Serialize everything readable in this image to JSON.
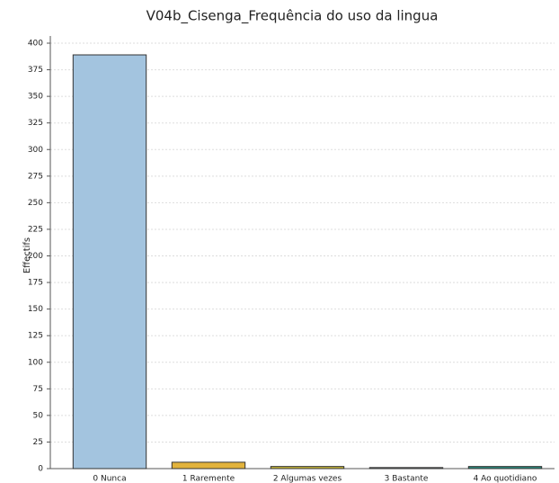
{
  "chart_data": {
    "type": "bar",
    "title": "V04b_Cisenga_Frequência do uso da lingua",
    "y_label": "Effectifs",
    "categories": [
      "0  Nunca",
      "1  Raremente",
      "2  Algumas vezes",
      "3  Bastante",
      "4  Ao quotidiano"
    ],
    "values": [
      389,
      6,
      2,
      1,
      2
    ],
    "colors": [
      "#a3c4df",
      "#e2b33c",
      "#c9b83a",
      "#8a8f95",
      "#2b8a7c"
    ],
    "ylim": [
      0,
      400
    ],
    "yticks": [
      0,
      25,
      50,
      75,
      100,
      125,
      150,
      175,
      200,
      225,
      250,
      275,
      300,
      325,
      350,
      375,
      400
    ],
    "grid": true
  }
}
